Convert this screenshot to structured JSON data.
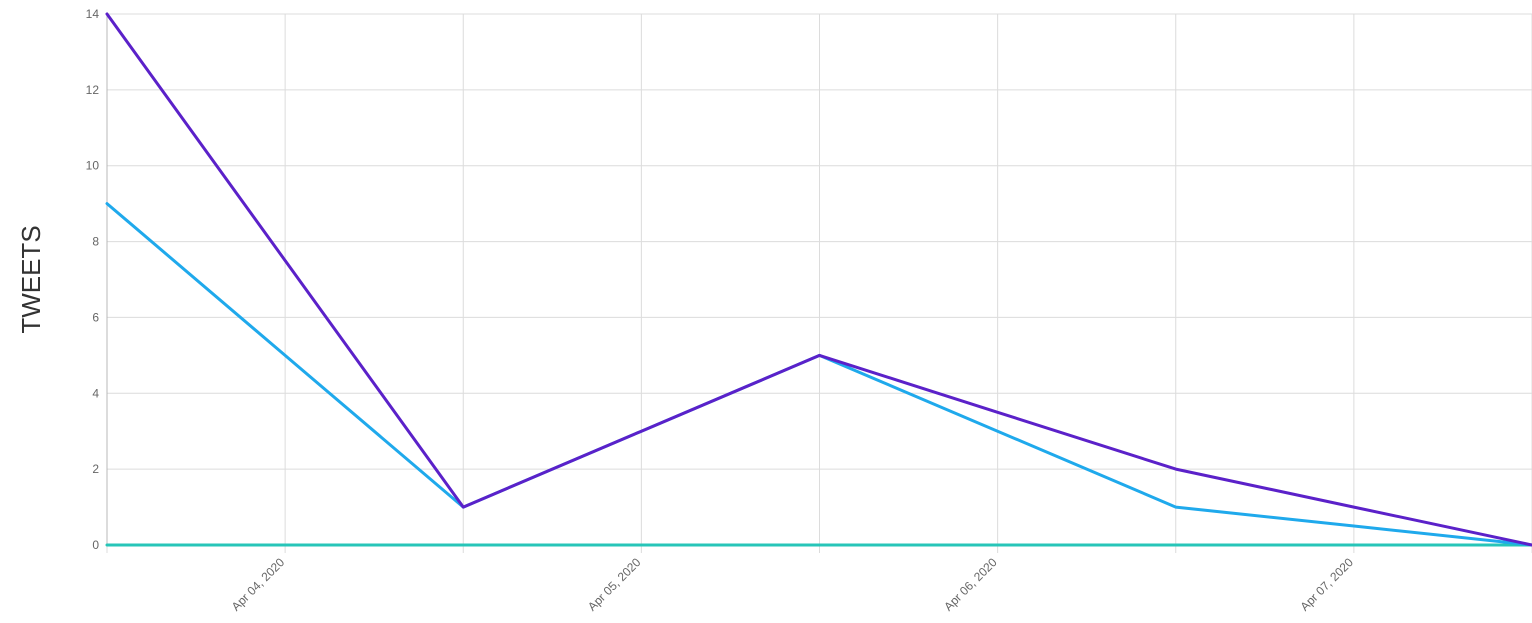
{
  "chart_data": {
    "type": "line",
    "title": "",
    "xlabel": "",
    "ylabel": "TWEETS",
    "x": [
      "2020-04-03T12:00",
      "2020-04-04T00:00",
      "2020-04-04T12:00",
      "2020-04-05T00:00",
      "2020-04-05T12:00",
      "2020-04-06T00:00",
      "2020-04-06T12:00",
      "2020-04-07T00:00",
      "2020-04-07T12:00"
    ],
    "x_ticks": [
      "Apr 04, 2020",
      "Apr 05, 2020",
      "Apr 06, 2020",
      "Apr 07, 2020"
    ],
    "y_ticks": [
      "0",
      "2",
      "4",
      "6",
      "8",
      "10",
      "12",
      "14"
    ],
    "ylim": [
      0,
      14
    ],
    "grid": true,
    "legend": "none",
    "series": [
      {
        "color": "#5b21c9",
        "values": [
          14,
          7.5,
          1,
          3,
          5,
          3.5,
          2,
          1,
          0
        ]
      },
      {
        "color": "#1fa9ec",
        "values": [
          9,
          5,
          1,
          3,
          5,
          3,
          1,
          0.5,
          0
        ]
      },
      {
        "color": "#27c5b8",
        "values": [
          0,
          0,
          0,
          0,
          0,
          0,
          0,
          0,
          0
        ]
      }
    ]
  }
}
